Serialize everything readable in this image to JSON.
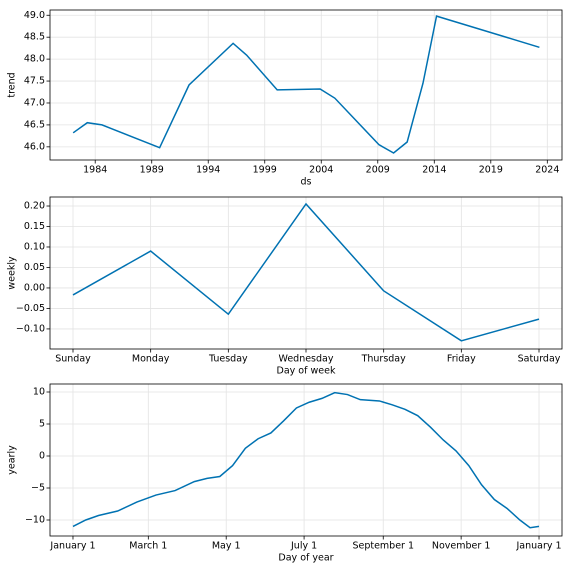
{
  "chart_data": [
    {
      "type": "line",
      "ylabel": "trend",
      "xlabel": "ds",
      "x": [
        1982.05,
        1983.3,
        1984.6,
        1989.7,
        1992.3,
        1996.2,
        1997.4,
        2000.1,
        2003.9,
        2005.2,
        2009.1,
        2010.4,
        2011.6,
        2013.0,
        2014.2,
        2023.3
      ],
      "series": [
        {
          "name": "trend",
          "color": "#0072B2",
          "values": [
            46.32,
            46.55,
            46.5,
            45.98,
            47.41,
            48.36,
            48.09,
            47.3,
            47.32,
            47.11,
            46.05,
            45.86,
            46.11,
            47.45,
            48.98,
            48.27
          ]
        }
      ],
      "xlim": [
        1980.0,
        2025.3
      ],
      "xticks": [
        1984,
        1989,
        1994,
        1999,
        2004,
        2009,
        2014,
        2019,
        2024
      ],
      "ylim": [
        45.7,
        49.12
      ],
      "yticks": [
        {
          "value": 46,
          "label": "46.0"
        },
        {
          "value": 46.5,
          "label": "46.5"
        },
        {
          "value": 47,
          "label": "47.0"
        },
        {
          "value": 47.5,
          "label": "47.5"
        },
        {
          "value": 48,
          "label": "48.0"
        },
        {
          "value": 48.5,
          "label": "48.5"
        },
        {
          "value": 49,
          "label": "49.0"
        }
      ],
      "grid": true
    },
    {
      "type": "line",
      "ylabel": "weekly",
      "xlabel": "Day of week",
      "categories": [
        "Sunday",
        "Monday",
        "Tuesday",
        "Wednesday",
        "Thursday",
        "Friday",
        "Saturday"
      ],
      "series": [
        {
          "name": "weekly",
          "color": "#0072B2",
          "values": [
            -0.017,
            0.09,
            -0.064,
            0.205,
            -0.007,
            -0.129,
            -0.076
          ]
        }
      ],
      "ylim": [
        -0.149,
        0.222
      ],
      "yticks": [
        {
          "value": -0.1,
          "label": "−0.10"
        },
        {
          "value": -0.05,
          "label": "−0.05"
        },
        {
          "value": 0,
          "label": "0.00"
        },
        {
          "value": 0.05,
          "label": "0.05"
        },
        {
          "value": 0.1,
          "label": "0.10"
        },
        {
          "value": 0.15,
          "label": "0.15"
        },
        {
          "value": 0.2,
          "label": "0.20"
        }
      ],
      "grid": true
    },
    {
      "type": "line",
      "ylabel": "yearly",
      "xlabel": "Day of year",
      "x": [
        0,
        10,
        20,
        35,
        50,
        65,
        80,
        95,
        105,
        115,
        125,
        135,
        145,
        155,
        165,
        175,
        185,
        195,
        205,
        215,
        225,
        240,
        250,
        260,
        270,
        280,
        290,
        300,
        310,
        320,
        330,
        340,
        350,
        358,
        365
      ],
      "series": [
        {
          "name": "yearly",
          "color": "#0072B2",
          "values": [
            -11.0,
            -10.0,
            -9.3,
            -8.6,
            -7.2,
            -6.1,
            -5.4,
            -4.0,
            -3.5,
            -3.2,
            -1.5,
            1.2,
            2.7,
            3.6,
            5.5,
            7.5,
            8.4,
            9.0,
            9.9,
            9.6,
            8.8,
            8.6,
            8.0,
            7.3,
            6.3,
            4.5,
            2.5,
            0.8,
            -1.5,
            -4.5,
            -6.8,
            -8.2,
            -10.0,
            -11.2,
            -11.0
          ]
        }
      ],
      "xlim": [
        -18,
        383
      ],
      "xticks": [
        {
          "value": 0,
          "label": "January 1"
        },
        {
          "value": 59,
          "label": "March 1"
        },
        {
          "value": 120,
          "label": "May 1"
        },
        {
          "value": 181,
          "label": "July 1"
        },
        {
          "value": 243,
          "label": "September 1"
        },
        {
          "value": 304,
          "label": "November 1"
        },
        {
          "value": 365,
          "label": "January 1"
        }
      ],
      "ylim": [
        -12.5,
        11.25
      ],
      "yticks": [
        {
          "value": -10,
          "label": "−10"
        },
        {
          "value": -5,
          "label": "−5"
        },
        0,
        5,
        10
      ],
      "grid": true
    }
  ]
}
